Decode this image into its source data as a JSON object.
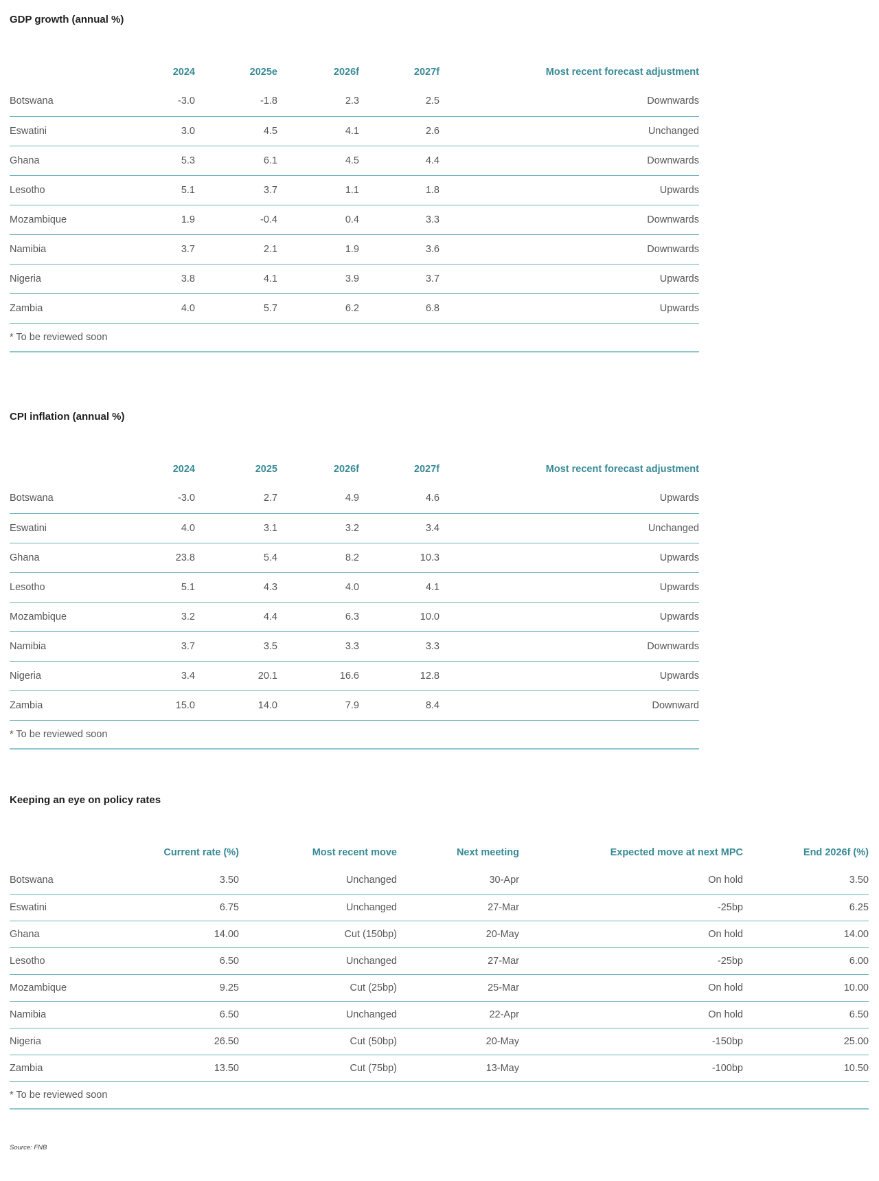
{
  "colors": {
    "accent": "#388a96",
    "row_border": "#68b2ba",
    "rule": "#8cc9cf",
    "body_text": "#565656",
    "title_text": "#1f1f1f"
  },
  "tables": [
    {
      "id": "gdp-growth",
      "title": "GDP growth (annual %)",
      "columns": [
        "",
        "2024",
        "2025e",
        "2026f",
        "2027f",
        "Most recent forecast adjustment"
      ],
      "rows": [
        [
          "Botswana",
          "-3.0",
          "-1.8",
          "2.3",
          "2.5",
          "Downwards"
        ],
        [
          "Eswatini",
          "3.0",
          "4.5",
          "4.1",
          "2.6",
          "Unchanged"
        ],
        [
          "Ghana",
          "5.3",
          "6.1",
          "4.5",
          "4.4",
          "Downwards"
        ],
        [
          "Lesotho",
          "5.1",
          "3.7",
          "1.1",
          "1.8",
          "Upwards"
        ],
        [
          "Mozambique",
          "1.9",
          "-0.4",
          "0.4",
          "3.3",
          "Downwards"
        ],
        [
          "Namibia",
          "3.7",
          "2.1",
          "1.9",
          "3.6",
          "Downwards"
        ],
        [
          "Nigeria",
          "3.8",
          "4.1",
          "3.9",
          "3.7",
          "Upwards"
        ],
        [
          "Zambia",
          "4.0",
          "5.7",
          "6.2",
          "6.8",
          "Upwards"
        ]
      ],
      "footnote": "* To be reviewed soon"
    },
    {
      "id": "cpi-inflation",
      "title": "CPI inflation (annual %)",
      "columns": [
        "",
        "2024",
        "2025",
        "2026f",
        "2027f",
        "Most recent forecast adjustment"
      ],
      "rows": [
        [
          "Botswana",
          "-3.0",
          "2.7",
          "4.9",
          "4.6",
          "Upwards"
        ],
        [
          "Eswatini",
          "4.0",
          "3.1",
          "3.2",
          "3.4",
          "Unchanged"
        ],
        [
          "Ghana",
          "23.8",
          "5.4",
          "8.2",
          "10.3",
          "Upwards"
        ],
        [
          "Lesotho",
          "5.1",
          "4.3",
          "4.0",
          "4.1",
          "Upwards"
        ],
        [
          "Mozambique",
          "3.2",
          "4.4",
          "6.3",
          "10.0",
          "Upwards"
        ],
        [
          "Namibia",
          "3.7",
          "3.5",
          "3.3",
          "3.3",
          "Downwards"
        ],
        [
          "Nigeria",
          "3.4",
          "20.1",
          "16.6",
          "12.8",
          "Upwards"
        ],
        [
          "Zambia",
          "15.0",
          "14.0",
          "7.9",
          "8.4",
          "Downward"
        ]
      ],
      "footnote": "* To be reviewed soon"
    },
    {
      "id": "policy-rates",
      "title": "Keeping an eye on policy rates",
      "columns": [
        "",
        "Current rate (%)",
        "Most recent move",
        "Next meeting",
        "Expected move at next MPC",
        "End 2026f (%)"
      ],
      "rows": [
        [
          "Botswana",
          "3.50",
          "Unchanged",
          "30-Apr",
          "On hold",
          "3.50"
        ],
        [
          "Eswatini",
          "6.75",
          "Unchanged",
          "27-Mar",
          "-25bp",
          "6.25"
        ],
        [
          "Ghana",
          "14.00",
          "Cut (150bp)",
          "20-May",
          "On hold",
          "14.00"
        ],
        [
          "Lesotho",
          "6.50",
          "Unchanged",
          "27-Mar",
          "-25bp",
          "6.00"
        ],
        [
          "Mozambique",
          "9.25",
          "Cut (25bp)",
          "25-Mar",
          "On hold",
          "10.00"
        ],
        [
          "Namibia",
          "6.50",
          "Unchanged",
          "22-Apr",
          "On hold",
          "6.50"
        ],
        [
          "Nigeria",
          "26.50",
          "Cut (50bp)",
          "20-May",
          "-150bp",
          "25.00"
        ],
        [
          "Zambia",
          "13.50",
          "Cut (75bp)",
          "13-May",
          "-100bp",
          "10.50"
        ]
      ],
      "footnote": "* To be reviewed soon"
    }
  ],
  "source_note": "Source: FNB"
}
